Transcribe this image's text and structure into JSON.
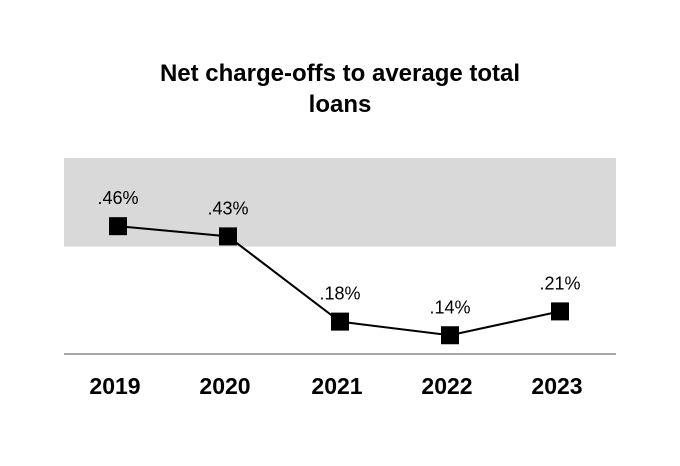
{
  "chart_data": {
    "type": "line",
    "title": "Net charge-offs to average total loans",
    "title_lines": [
      "Net charge-offs to average total",
      "loans"
    ],
    "categories": [
      "2019",
      "2020",
      "2021",
      "2022",
      "2023"
    ],
    "values": [
      0.46,
      0.43,
      0.18,
      0.14,
      0.21
    ],
    "data_labels": [
      ".46%",
      ".43%",
      ".18%",
      ".14%",
      ".21%"
    ],
    "shaded_band": [
      0.4,
      0.66
    ],
    "ylim": [
      0.085,
      0.66
    ],
    "xlabel": "",
    "ylabel": "",
    "grid": false,
    "legend": "none"
  },
  "colors": {
    "line": "#000000",
    "marker": "#000000",
    "band": "#d9d9d9",
    "baseline": "#a6a6a6"
  }
}
